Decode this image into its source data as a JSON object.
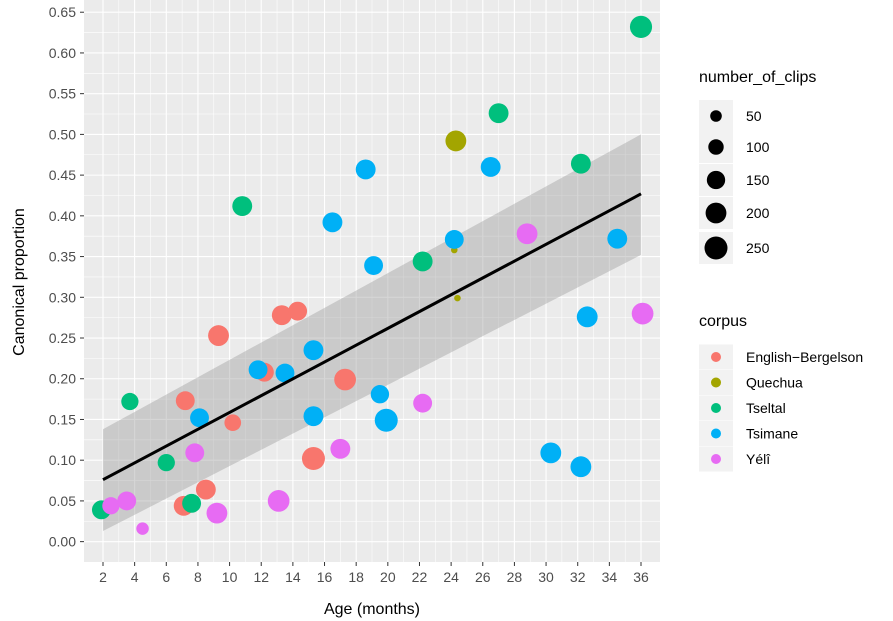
{
  "chart_data": {
    "type": "scatter",
    "title": "",
    "xlabel": "Age (months)",
    "ylabel": "Canonical proportion",
    "xlim": [
      0.8,
      37.2
    ],
    "ylim": [
      -0.025,
      0.665
    ],
    "x_ticks": [
      2,
      4,
      6,
      8,
      10,
      12,
      14,
      16,
      18,
      20,
      22,
      24,
      26,
      28,
      30,
      32,
      34,
      36
    ],
    "x_tick_labels": [
      "2",
      "4",
      "6",
      "8",
      "10",
      "12",
      "14",
      "16",
      "18",
      "20",
      "22",
      "24",
      "26",
      "28",
      "30",
      "32",
      "34",
      "36"
    ],
    "y_ticks": [
      0,
      0.05,
      0.1,
      0.15,
      0.2,
      0.25,
      0.3,
      0.35,
      0.4,
      0.45,
      0.5,
      0.55,
      0.6,
      0.65
    ],
    "y_tick_labels": [
      "0.00",
      "0.05",
      "0.10",
      "0.15",
      "0.20",
      "0.25",
      "0.30",
      "0.35",
      "0.40",
      "0.45",
      "0.50",
      "0.55",
      "0.60",
      "0.65"
    ],
    "grid": true,
    "panel_background": "#ebebeb",
    "trend_line": {
      "x": [
        2,
        36
      ],
      "y": [
        0.076,
        0.427
      ],
      "ribbon_lower": [
        0.013,
        0.352
      ],
      "ribbon_upper": [
        0.138,
        0.5
      ]
    },
    "size_legend": {
      "title": "number_of_clips",
      "entries": [
        {
          "label": "50",
          "value": 50
        },
        {
          "label": "100",
          "value": 100
        },
        {
          "label": "150",
          "value": 150
        },
        {
          "label": "200",
          "value": 200
        },
        {
          "label": "250",
          "value": 250
        }
      ]
    },
    "color_legend": {
      "title": "corpus",
      "entries": [
        {
          "label": "English−Bergelson",
          "color": "#F8766D"
        },
        {
          "label": "Quechua",
          "color": "#A3A500"
        },
        {
          "label": "Tseltal",
          "color": "#00BF7D"
        },
        {
          "label": "Tsimane",
          "color": "#00B0F6"
        },
        {
          "label": "Yélî",
          "color": "#E76BF3"
        }
      ]
    },
    "series": [
      {
        "name": "English−Bergelson",
        "color": "#F8766D",
        "points": [
          [
            7.1,
            0.044,
            180
          ],
          [
            7.2,
            0.173,
            160
          ],
          [
            8.5,
            0.064,
            180
          ],
          [
            9.3,
            0.253,
            200
          ],
          [
            10.2,
            0.146,
            120
          ],
          [
            12.2,
            0.208,
            160
          ],
          [
            13.3,
            0.278,
            180
          ],
          [
            14.3,
            0.283,
            160
          ],
          [
            15.3,
            0.102,
            250
          ],
          [
            17.3,
            0.199,
            220
          ]
        ]
      },
      {
        "name": "Quechua",
        "color": "#A3A500",
        "points": [
          [
            24.2,
            0.358,
            10
          ],
          [
            24.4,
            0.299,
            10
          ],
          [
            24.3,
            0.492,
            200
          ]
        ]
      },
      {
        "name": "Tseltal",
        "color": "#00BF7D",
        "points": [
          [
            1.9,
            0.039,
            160
          ],
          [
            3.7,
            0.172,
            130
          ],
          [
            6.0,
            0.097,
            130
          ],
          [
            7.6,
            0.047,
            160
          ],
          [
            10.8,
            0.412,
            180
          ],
          [
            22.2,
            0.344,
            180
          ],
          [
            27.0,
            0.526,
            180
          ],
          [
            32.2,
            0.464,
            180
          ],
          [
            36.0,
            0.632,
            230
          ]
        ]
      },
      {
        "name": "Tsimane",
        "color": "#00B0F6",
        "points": [
          [
            8.1,
            0.152,
            160
          ],
          [
            11.8,
            0.211,
            160
          ],
          [
            13.5,
            0.207,
            160
          ],
          [
            15.3,
            0.235,
            180
          ],
          [
            15.3,
            0.154,
            180
          ],
          [
            16.5,
            0.392,
            180
          ],
          [
            18.6,
            0.457,
            180
          ],
          [
            19.1,
            0.339,
            160
          ],
          [
            19.5,
            0.181,
            150
          ],
          [
            19.9,
            0.149,
            250
          ],
          [
            24.2,
            0.371,
            160
          ],
          [
            26.5,
            0.46,
            180
          ],
          [
            30.3,
            0.109,
            200
          ],
          [
            32.2,
            0.092,
            200
          ],
          [
            32.6,
            0.276,
            200
          ],
          [
            34.5,
            0.372,
            180
          ]
        ]
      },
      {
        "name": "Yélî",
        "color": "#E76BF3",
        "points": [
          [
            2.5,
            0.044,
            130
          ],
          [
            3.5,
            0.05,
            160
          ],
          [
            4.5,
            0.016,
            60
          ],
          [
            7.8,
            0.109,
            160
          ],
          [
            9.2,
            0.035,
            200
          ],
          [
            13.1,
            0.05,
            220
          ],
          [
            17.0,
            0.114,
            180
          ],
          [
            22.2,
            0.17,
            160
          ],
          [
            28.8,
            0.378,
            200
          ],
          [
            36.1,
            0.28,
            220
          ]
        ]
      }
    ]
  }
}
